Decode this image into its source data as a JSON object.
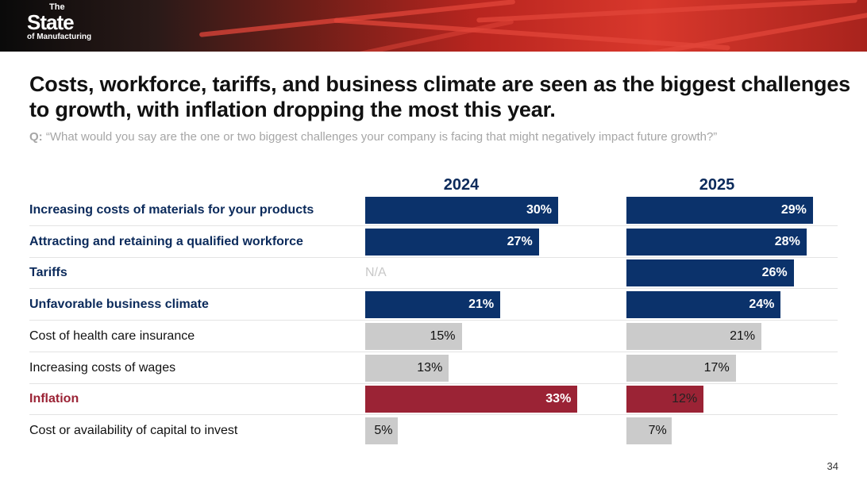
{
  "brand": {
    "logo_text": "The State of Manufacturing"
  },
  "title": "Costs, workforce, tariffs, and business climate are seen as the biggest challenges to growth, with inflation dropping the most this year.",
  "question": {
    "prefix": "Q:",
    "text": "“What would you say are the one or two biggest challenges your company is facing that might negatively impact future growth?”"
  },
  "page_number": "34",
  "colors": {
    "navy": "#0b326b",
    "gray": "#cbcbcb",
    "red": "#9b2335"
  },
  "chart_data": {
    "type": "bar",
    "orientation": "horizontal",
    "title": "Costs, workforce, tariffs, and business climate are seen as the biggest challenges to growth, with inflation dropping the most this year.",
    "categories": [
      "Increasing costs of materials for your products",
      "Attracting and retaining a qualified workforce",
      "Tariffs",
      "Unfavorable business climate",
      "Cost of health care insurance",
      "Increasing costs of wages",
      "Inflation",
      "Cost or availability of capital to invest"
    ],
    "category_style": [
      "highlight",
      "highlight",
      "highlight",
      "highlight",
      "normal",
      "normal",
      "inflation",
      "normal"
    ],
    "series": [
      {
        "name": "2024",
        "values": [
          30,
          27,
          null,
          21,
          15,
          13,
          33,
          5
        ],
        "labels": [
          "30%",
          "27%",
          "N/A",
          "21%",
          "15%",
          "13%",
          "33%",
          "5%"
        ]
      },
      {
        "name": "2025",
        "values": [
          29,
          28,
          26,
          24,
          21,
          17,
          12,
          7
        ],
        "labels": [
          "29%",
          "28%",
          "26%",
          "24%",
          "21%",
          "17%",
          "12%",
          "7%"
        ]
      }
    ],
    "unit": "%",
    "xlim": [
      0,
      40
    ],
    "grid": false,
    "legend": "none"
  }
}
